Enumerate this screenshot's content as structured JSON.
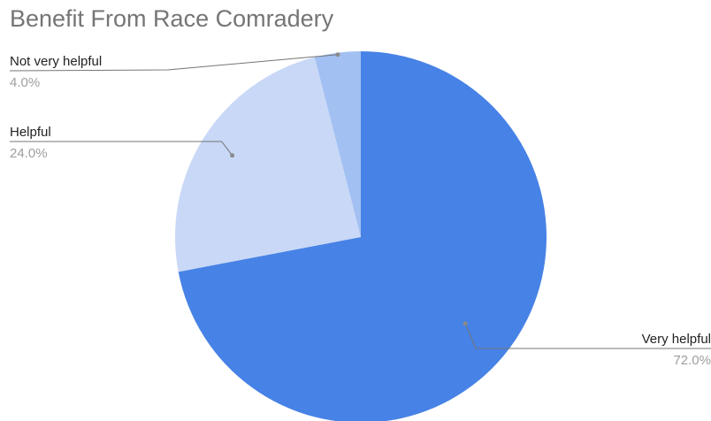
{
  "chart_data": {
    "type": "pie",
    "title": "Benefit From Race Comradery",
    "slices": [
      {
        "label": "Very helpful",
        "value": 72.0,
        "display": "72.0%",
        "color": "#4782e6"
      },
      {
        "label": "Helpful",
        "value": 24.0,
        "display": "24.0%",
        "color": "#c8d8f6"
      },
      {
        "label": "Not very helpful",
        "value": 4.0,
        "display": "4.0%",
        "color": "#a2c0f2"
      }
    ],
    "legend": "none",
    "data_labels": "outside-with-leader-lines"
  }
}
